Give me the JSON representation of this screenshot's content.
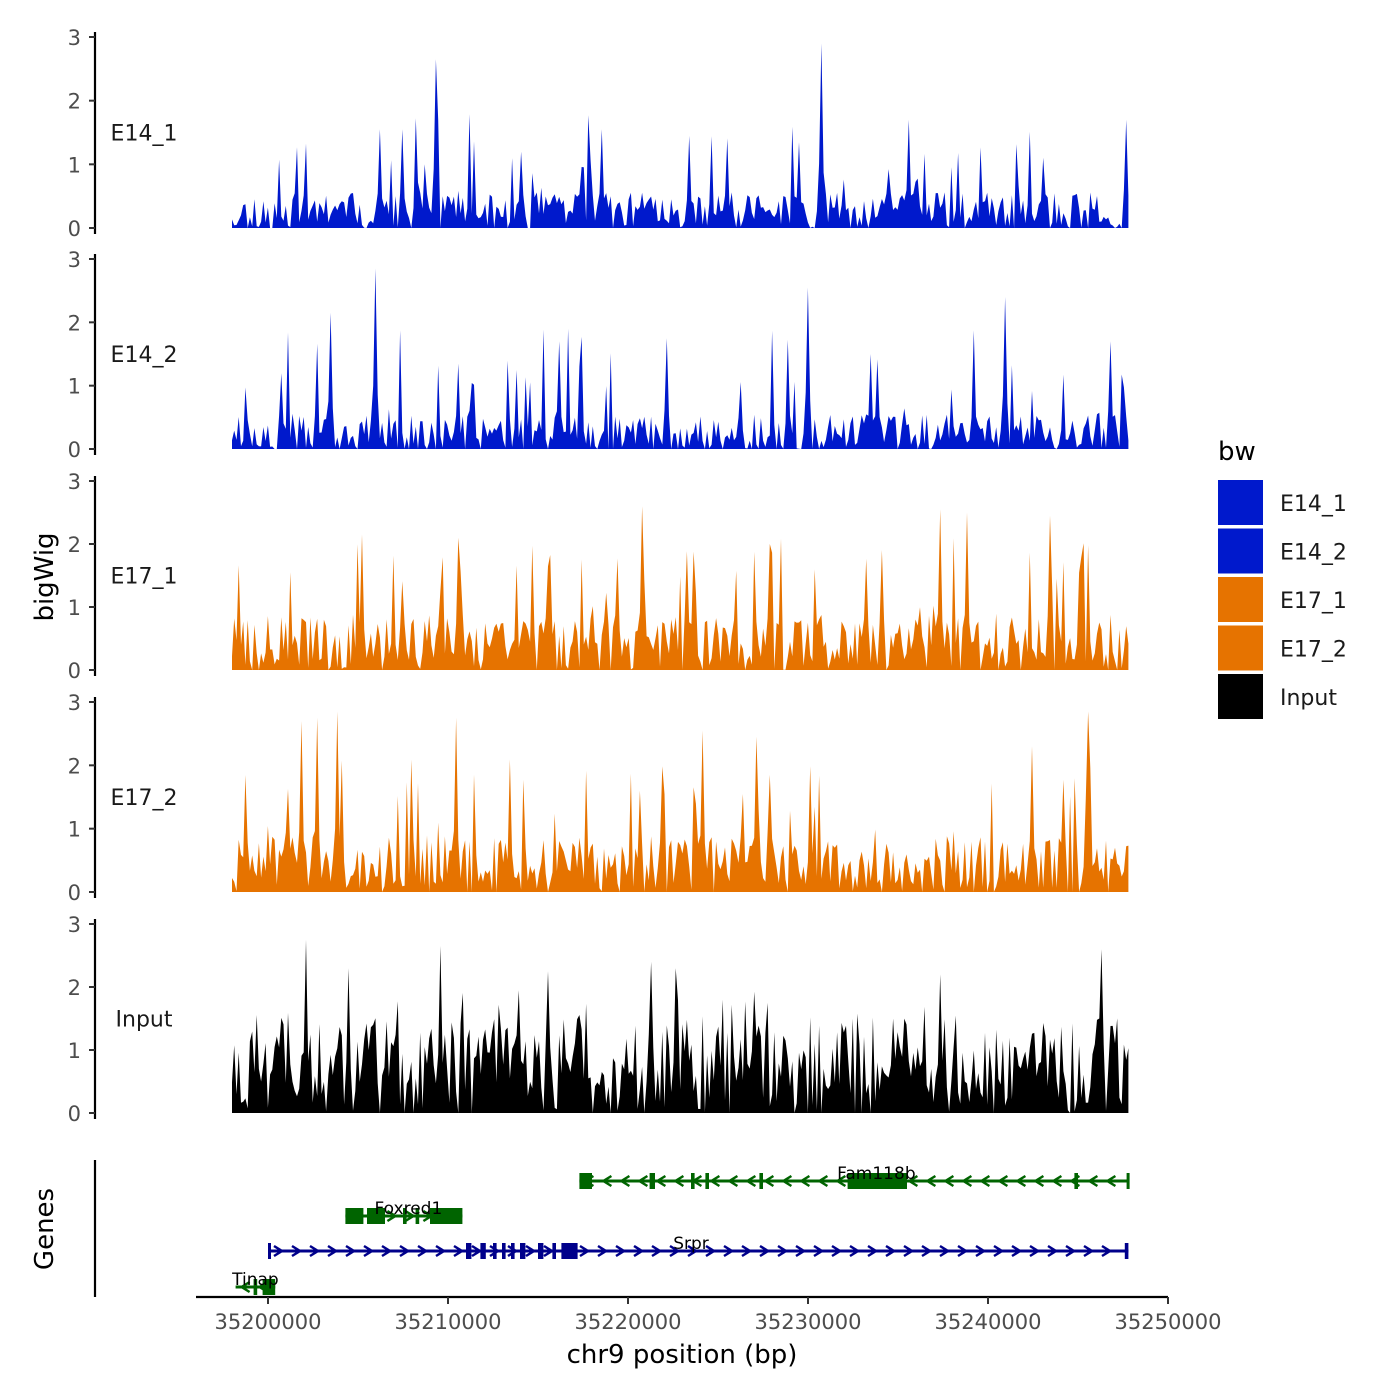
{
  "chart_data": {
    "type": "area",
    "title": "",
    "xlabel": "chr9 position (bp)",
    "ylabel": "bigWig",
    "genes_label": "Genes",
    "xlim": [
      35196000,
      35250000
    ],
    "ylim": [
      0,
      3
    ],
    "yticks": [
      0,
      1,
      2,
      3
    ],
    "xticks": [
      35200000,
      35210000,
      35220000,
      35230000,
      35240000,
      35250000
    ],
    "xtick_labels": [
      "35200000",
      "35210000",
      "35220000",
      "35230000",
      "35240000",
      "35250000"
    ],
    "legend": {
      "title": "bw",
      "placement": "right",
      "entries": [
        {
          "label": "E14_1",
          "color": "#0019CC"
        },
        {
          "label": "E14_2",
          "color": "#0019CC"
        },
        {
          "label": "E17_1",
          "color": "#E67300"
        },
        {
          "label": "E17_2",
          "color": "#E67300"
        },
        {
          "label": "Input",
          "color": "#000000"
        }
      ]
    },
    "series": [
      {
        "name": "E14_1",
        "color": "#0019CC",
        "seed": 11,
        "base": 0.35,
        "spike_prob": 0.12,
        "spike_max": 1.5,
        "peaks": [
          [
            35209300,
            2.65
          ],
          [
            35230700,
            2.9
          ],
          [
            35207500,
            1.55
          ],
          [
            35206200,
            1.55
          ],
          [
            35229500,
            1.35
          ],
          [
            35235600,
            1.7
          ],
          [
            35247700,
            1.7
          ],
          [
            35214000,
            1.2
          ],
          [
            35218500,
            1.55
          ]
        ]
      },
      {
        "name": "E14_2",
        "color": "#0019CC",
        "seed": 23,
        "base": 0.35,
        "spike_prob": 0.12,
        "spike_max": 1.6,
        "peaks": [
          [
            35206000,
            2.85
          ],
          [
            35203500,
            2.15
          ],
          [
            35230000,
            2.55
          ],
          [
            35240900,
            2.4
          ],
          [
            35216200,
            1.7
          ],
          [
            35222200,
            1.75
          ],
          [
            35233500,
            1.5
          ],
          [
            35246800,
            1.7
          ]
        ]
      },
      {
        "name": "E17_1",
        "color": "#E67300",
        "seed": 37,
        "base": 0.55,
        "spike_prob": 0.16,
        "spike_max": 1.8,
        "peaks": [
          [
            35220800,
            2.6
          ],
          [
            35237300,
            2.55
          ],
          [
            35238800,
            2.5
          ],
          [
            35205200,
            2.15
          ],
          [
            35227900,
            2.0
          ],
          [
            35243500,
            2.45
          ],
          [
            35210600,
            2.1
          ]
        ]
      },
      {
        "name": "E17_2",
        "color": "#E67300",
        "seed": 41,
        "base": 0.55,
        "spike_prob": 0.16,
        "spike_max": 1.8,
        "peaks": [
          [
            35203800,
            2.85
          ],
          [
            35210500,
            2.75
          ],
          [
            35202700,
            2.75
          ],
          [
            35245600,
            2.85
          ],
          [
            35242500,
            2.3
          ],
          [
            35224200,
            2.55
          ],
          [
            35227100,
            2.45
          ],
          [
            35201800,
            2.7
          ]
        ]
      },
      {
        "name": "Input",
        "color": "#000000",
        "seed": 53,
        "base": 0.95,
        "spike_prob": 0.2,
        "spike_max": 1.7,
        "peaks": [
          [
            35202100,
            2.75
          ],
          [
            35209600,
            2.65
          ],
          [
            35246300,
            2.6
          ],
          [
            35215500,
            2.25
          ],
          [
            35221300,
            2.4
          ],
          [
            35237300,
            2.2
          ],
          [
            35204500,
            2.3
          ],
          [
            35222600,
            2.3
          ]
        ]
      }
    ],
    "data_start": 35198000,
    "data_end": 35247800,
    "bins": 400,
    "genes": [
      {
        "name": "Fam118b",
        "strand": "-",
        "color": "#006400",
        "start": 35217300,
        "end": 35247800,
        "row": 0,
        "exons": [
          [
            35217300,
            35218000
          ],
          [
            35221200,
            35221500
          ],
          [
            35223500,
            35223700
          ],
          [
            35224300,
            35224500
          ],
          [
            35227300,
            35227500
          ],
          [
            35232200,
            35235500
          ],
          [
            35244800,
            35245000
          ],
          [
            35247700,
            35247800
          ]
        ],
        "label_pos": 35233800
      },
      {
        "name": "Foxred1",
        "strand": "+",
        "color": "#006400",
        "start": 35204300,
        "end": 35210800,
        "row": 1,
        "exons": [
          [
            35204300,
            35205300
          ],
          [
            35205500,
            35206500
          ],
          [
            35207500,
            35207700
          ],
          [
            35208200,
            35208400
          ],
          [
            35209000,
            35210800
          ]
        ],
        "label_pos": 35207800
      },
      {
        "name": "Srpr",
        "strand": "+",
        "color": "#00008B",
        "start": 35200000,
        "end": 35247800,
        "row": 2,
        "exons": [
          [
            35200000,
            35200100
          ],
          [
            35211000,
            35211300
          ],
          [
            35211800,
            35212100
          ],
          [
            35212500,
            35212700
          ],
          [
            35213000,
            35213200
          ],
          [
            35213500,
            35213700
          ],
          [
            35214000,
            35214300
          ],
          [
            35215000,
            35215300
          ],
          [
            35215800,
            35216000
          ],
          [
            35216300,
            35217200
          ],
          [
            35247600,
            35247800
          ]
        ],
        "label_pos": 35223500
      },
      {
        "name": "Tinap",
        "strand": "-",
        "color": "#006400",
        "start": 35198200,
        "end": 35200400,
        "row": 3,
        "exons": [
          [
            35199200,
            35199400
          ],
          [
            35199700,
            35200400
          ]
        ],
        "label_pos": 35199300
      }
    ]
  }
}
